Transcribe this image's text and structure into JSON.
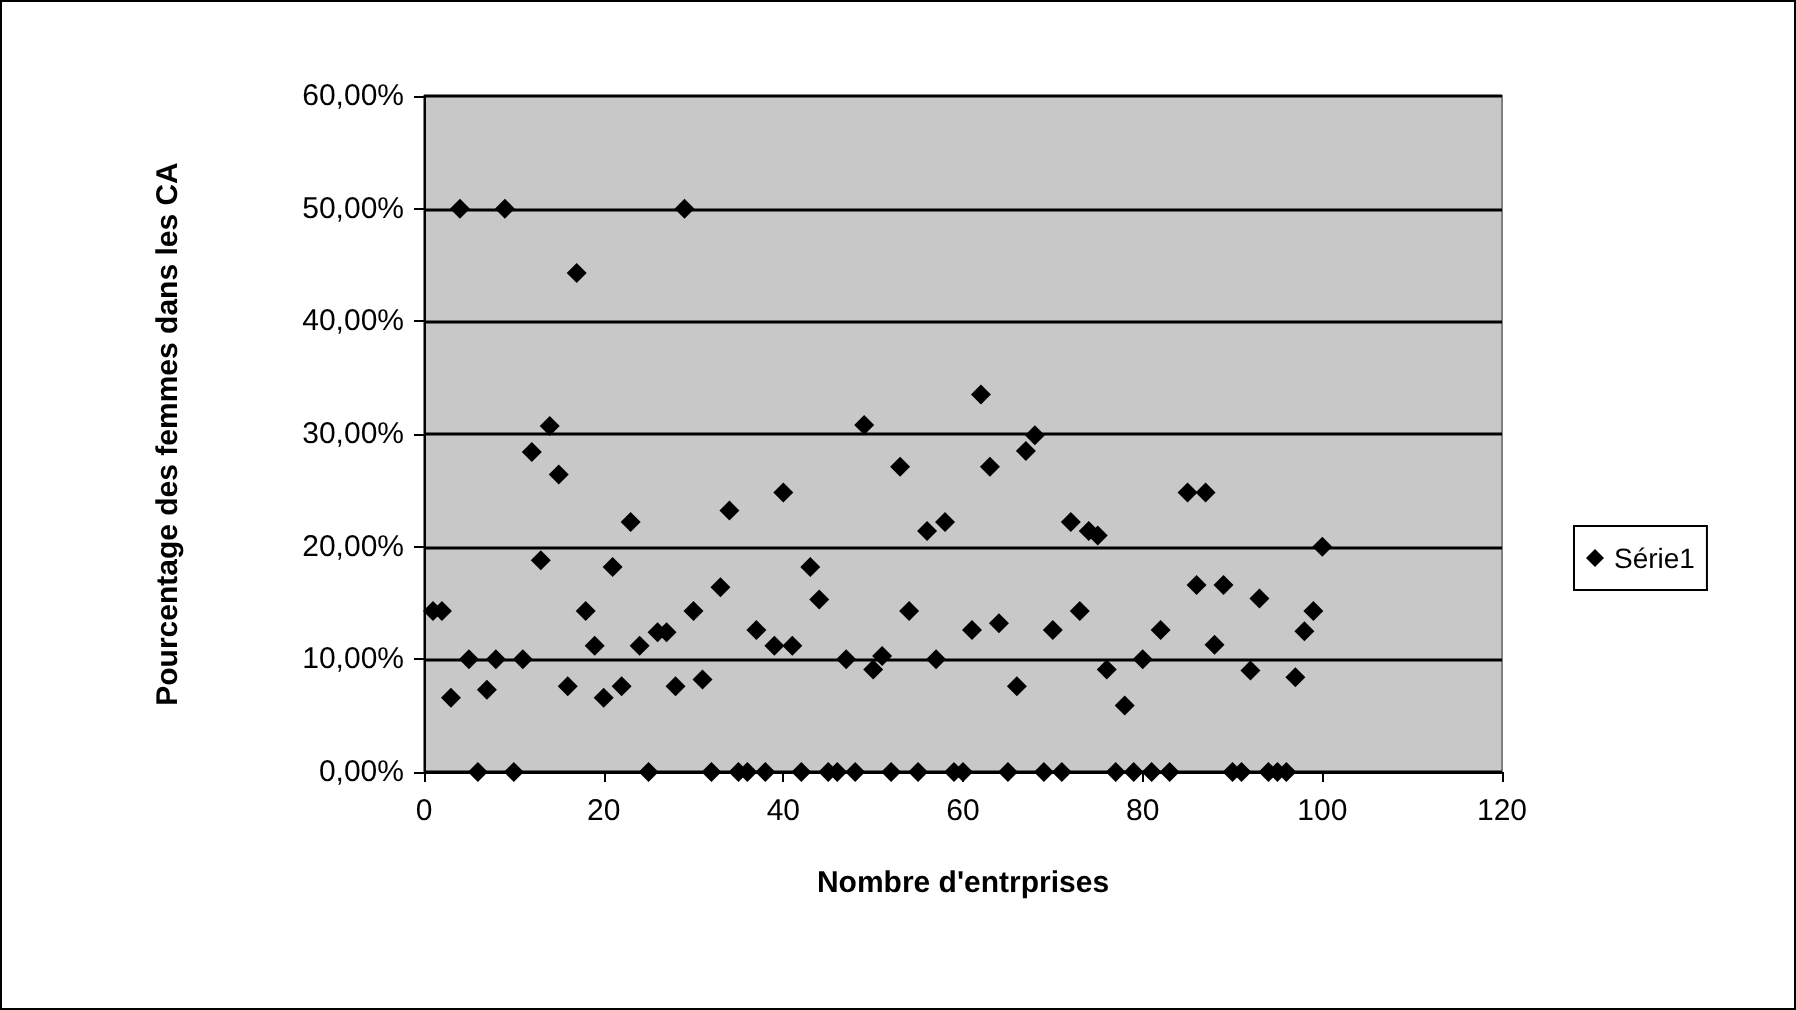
{
  "chart_data": {
    "type": "scatter",
    "xlabel": "Nombre d'entrprises",
    "ylabel": "Pourcentage des femmes dans les CA",
    "x": [
      1,
      2,
      3,
      4,
      5,
      6,
      7,
      8,
      9,
      10,
      11,
      12,
      13,
      14,
      15,
      16,
      17,
      18,
      19,
      20,
      21,
      22,
      23,
      24,
      25,
      26,
      27,
      28,
      29,
      30,
      31,
      32,
      33,
      34,
      35,
      36,
      37,
      38,
      39,
      40,
      41,
      42,
      43,
      44,
      45,
      46,
      47,
      48,
      49,
      50,
      51,
      52,
      53,
      54,
      55,
      56,
      57,
      58,
      59,
      60,
      61,
      62,
      63,
      64,
      65,
      66,
      67,
      68,
      69,
      70,
      71,
      72,
      73,
      74,
      75,
      76,
      77,
      78,
      79,
      80,
      81,
      82,
      83,
      85,
      86,
      87,
      88,
      89,
      90,
      91,
      92,
      93,
      94,
      95,
      96,
      97,
      98,
      99,
      100
    ],
    "series": [
      {
        "name": "Série1",
        "color": "#000000",
        "values": [
          14.3,
          14.3,
          6.6,
          50,
          10,
          0,
          7.3,
          10,
          50,
          0,
          10,
          28.4,
          18.8,
          30.7,
          26.4,
          7.6,
          44.3,
          14.3,
          11.2,
          6.6,
          18.2,
          7.6,
          22.2,
          11.2,
          0,
          12.4,
          12.4,
          7.6,
          50,
          14.3,
          8.2,
          0,
          16.4,
          23.2,
          0,
          0,
          12.6,
          0,
          11.2,
          24.8,
          11.2,
          0,
          18.2,
          15.3,
          0,
          0,
          10,
          0,
          30.8,
          9.1,
          10.3,
          0,
          27.1,
          14.3,
          0,
          21.4,
          10,
          22.2,
          0,
          0,
          12.6,
          33.5,
          27.1,
          13.2,
          0,
          7.6,
          28.5,
          29.9,
          0,
          12.6,
          0,
          22.2,
          14.3,
          21.4,
          21,
          9.1,
          0,
          5.9,
          0,
          10,
          0,
          12.6,
          0,
          24.8,
          16.6,
          24.8,
          11.3,
          16.6,
          0,
          0,
          9,
          15.4,
          0,
          0,
          0,
          8.4,
          12.5,
          14.3,
          20
        ]
      }
    ],
    "xlim": [
      0,
      120
    ],
    "xticks": [
      0,
      20,
      40,
      60,
      80,
      100,
      120
    ],
    "ylim": [
      0,
      60
    ],
    "yticks": [
      {
        "value": 0,
        "label": "0,00%"
      },
      {
        "value": 10,
        "label": "10,00%"
      },
      {
        "value": 20,
        "label": "20,00%"
      },
      {
        "value": 30,
        "label": "30,00%"
      },
      {
        "value": 40,
        "label": "40,00%"
      },
      {
        "value": 50,
        "label": "50,00%"
      },
      {
        "value": 60,
        "label": "60,00%"
      }
    ],
    "grid": "y",
    "legend": "right",
    "marker": "diamond"
  }
}
